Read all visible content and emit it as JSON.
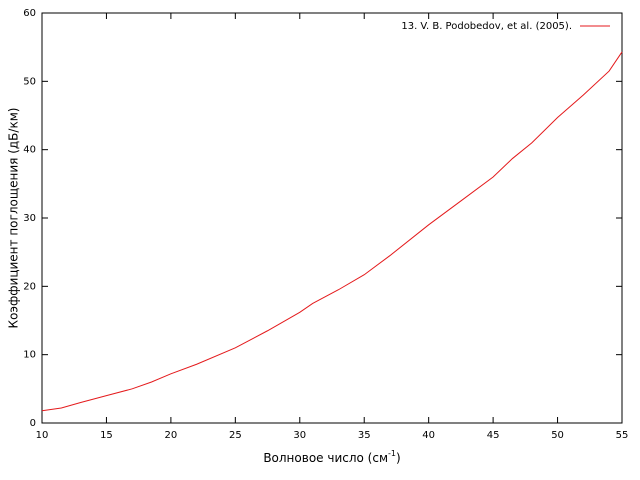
{
  "chart_data": {
    "type": "line",
    "xlabel": [
      "Волновое число (см",
      "-1",
      ")"
    ],
    "ylabel": "Коэффициент поглощения (дБ/км)",
    "series": [
      {
        "name": "13. V. B. Podobedov, et al. (2005).",
        "color": "#e41a1c",
        "x": [
          10,
          11.5,
          13,
          15,
          17,
          18.5,
          20,
          22,
          25,
          27.5,
          30,
          31,
          33,
          35,
          37,
          40,
          42.5,
          45,
          46.5,
          48,
          50,
          52,
          54,
          55
        ],
        "values": [
          1.8,
          2.2,
          3,
          4,
          5,
          6,
          7.2,
          8.6,
          11,
          13.5,
          16.2,
          17.5,
          19.5,
          21.7,
          24.5,
          29,
          32.5,
          36,
          38.7,
          41,
          44.7,
          48,
          51.5,
          54.3
        ]
      }
    ],
    "xlim": [
      10,
      55
    ],
    "xticks": [
      10,
      15,
      20,
      25,
      30,
      35,
      40,
      45,
      50,
      55
    ],
    "ylim": [
      0,
      60
    ],
    "yticks": [
      0,
      10,
      20,
      30,
      40,
      50,
      60
    ],
    "grid": false,
    "legend": "top-right"
  }
}
